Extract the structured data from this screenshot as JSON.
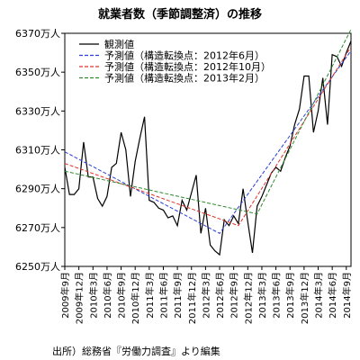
{
  "chart_data": {
    "type": "line",
    "title": "就業者数（季節調整済）の推移",
    "source": "出所）総務省『労働力調査』より編集",
    "xlabel": "",
    "ylabel": "",
    "ylim": [
      6250,
      6370
    ],
    "y_ticks": [
      6250,
      6270,
      6290,
      6310,
      6330,
      6350,
      6370
    ],
    "y_tick_labels": [
      "6250万人",
      "6270万人",
      "6290万人",
      "6310万人",
      "6330万人",
      "6350万人",
      "6370万人"
    ],
    "x_tick_labels": [
      "2009年9月",
      "2009年12月",
      "2010年3月",
      "2010年6月",
      "2010年9月",
      "2010年12月",
      "2011年3月",
      "2011年6月",
      "2011年9月",
      "2011年12月",
      "2012年3月",
      "2012年6月",
      "2012年9月",
      "2012年12月",
      "2013年3月",
      "2013年6月",
      "2013年9月",
      "2013年12月",
      "2014年3月",
      "2014年6月",
      "2014年9月"
    ],
    "x_start": "2009年9月",
    "x_end": "2014年9月",
    "grid": false,
    "legend_position": "top-left",
    "legend": [
      {
        "label": "観測値",
        "color": "#000000",
        "dash": "solid"
      },
      {
        "label": "予測値（構造転換点：2012年6月）",
        "color": "#2b3fd6",
        "dash": "dashed"
      },
      {
        "label": "予測値（構造転換点：2012年10月）",
        "color": "#e0352b",
        "dash": "dashed"
      },
      {
        "label": "予測値（構造転換点：2013年2月）",
        "color": "#2f8a2f",
        "dash": "dashed"
      }
    ],
    "series": [
      {
        "name": "観測値",
        "color": "#000000",
        "dash": "solid",
        "values": [
          6301,
          6287,
          6287,
          6290,
          6314,
          6296,
          6296,
          6285,
          6281,
          6286,
          6301,
          6303,
          6319,
          6310,
          6286,
          6304,
          6316,
          6327,
          6284,
          6283,
          6280,
          6279,
          6275,
          6276,
          6271,
          6284,
          6279,
          6288,
          6297,
          6267,
          6280,
          6261,
          6258,
          6256,
          6274,
          6271,
          6276,
          6272,
          6290,
          6273,
          6257,
          6281,
          6286,
          6292,
          6298,
          6301,
          6299,
          6306,
          6312,
          6323,
          6331,
          6348,
          6348,
          6319,
          6330,
          6347,
          6323,
          6359,
          6358,
          6353,
          6360,
          6366
        ]
      },
      {
        "name": "予測値（構造転換点：2012年6月）",
        "color": "#2b3fd6",
        "dash": "dashed",
        "points": [
          [
            0,
            6309
          ],
          [
            33,
            6267
          ],
          [
            61,
            6361
          ]
        ]
      },
      {
        "name": "予測値（構造転換点：2012年10月）",
        "color": "#e0352b",
        "dash": "dashed",
        "points": [
          [
            0,
            6303
          ],
          [
            37,
            6271
          ],
          [
            61,
            6363
          ]
        ]
      },
      {
        "name": "予測値（構造転換点：2013年2月）",
        "color": "#2f8a2f",
        "dash": "dashed",
        "points": [
          [
            0,
            6299
          ],
          [
            41,
            6277
          ],
          [
            61,
            6372
          ]
        ]
      }
    ]
  }
}
